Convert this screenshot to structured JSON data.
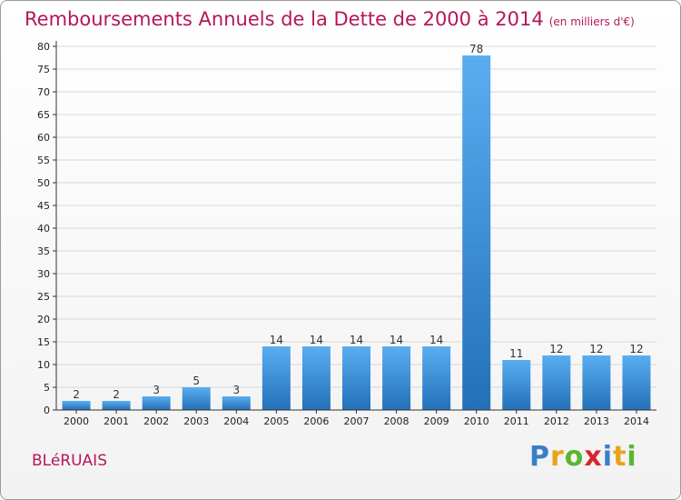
{
  "header": {
    "title": "Remboursements Annuels de la Dette de 2000 à 2014",
    "unit": "(en milliers d'€)"
  },
  "footer": {
    "commune": "BLéRUAIS",
    "logo": {
      "letters": [
        "P",
        "r",
        "o",
        "x",
        "i",
        "t",
        "i"
      ],
      "colors": [
        "#3a7ec8",
        "#e8a317",
        "#5cb531",
        "#d6262d",
        "#3a7ec8",
        "#e8a317",
        "#5cb531"
      ]
    }
  },
  "colors": {
    "bar_top": "#5aaef0",
    "bar_bottom": "#2370b8",
    "title": "#b5175a",
    "grid": "#d8d8d8",
    "axis": "#333333"
  },
  "chart_data": {
    "type": "bar",
    "categories": [
      "2000",
      "2001",
      "2002",
      "2003",
      "2004",
      "2005",
      "2006",
      "2007",
      "2008",
      "2009",
      "2010",
      "2011",
      "2012",
      "2013",
      "2014"
    ],
    "values": [
      2,
      2,
      3,
      5,
      3,
      14,
      14,
      14,
      14,
      14,
      78,
      11,
      12,
      12,
      12
    ],
    "yticks": [
      0,
      5,
      10,
      15,
      20,
      25,
      30,
      35,
      40,
      45,
      50,
      55,
      60,
      65,
      70,
      75,
      80
    ],
    "ylim": [
      0,
      80
    ],
    "grid": true,
    "data_labels": true
  }
}
